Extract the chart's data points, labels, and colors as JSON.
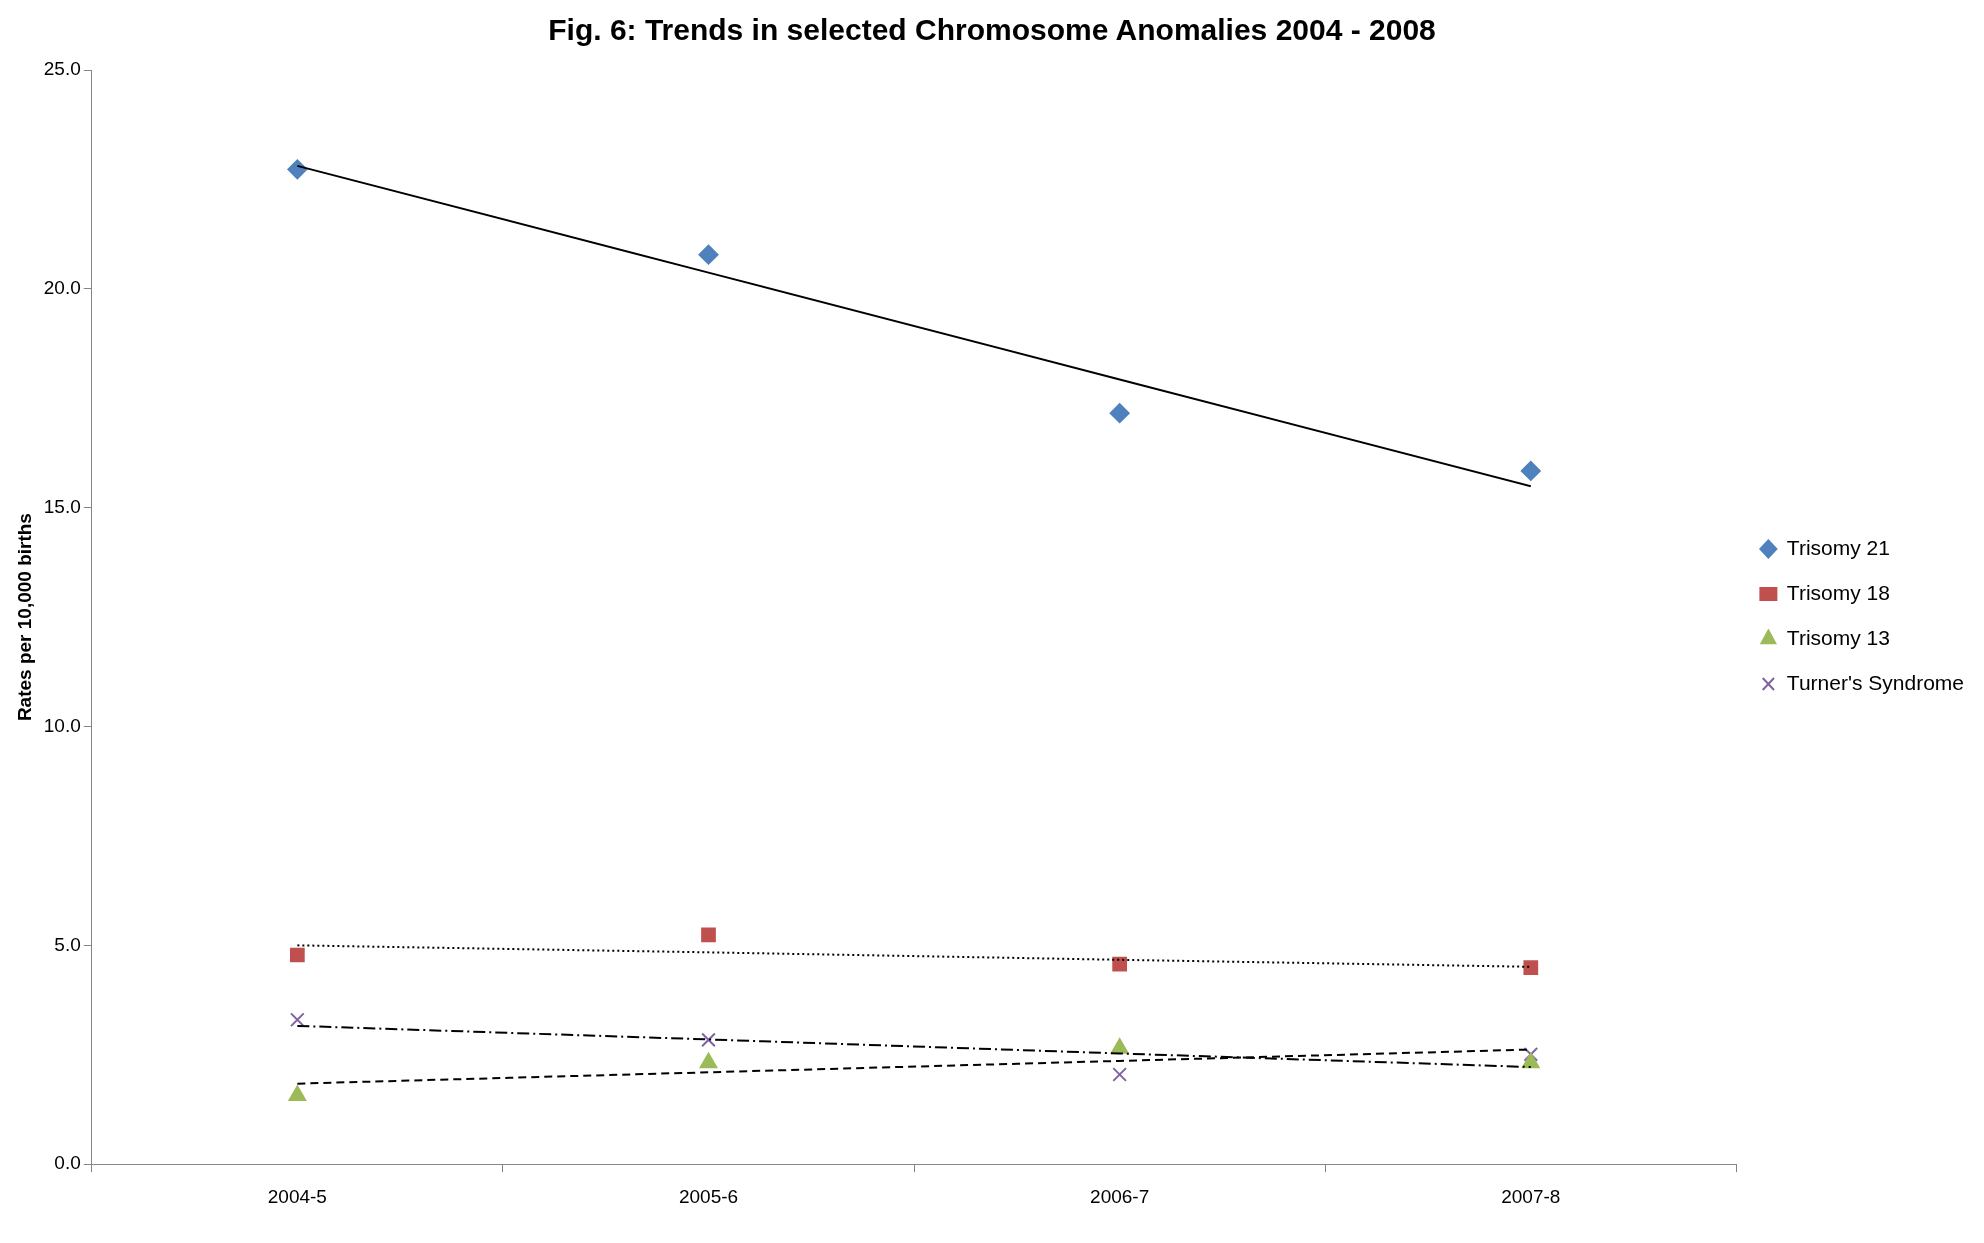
{
  "chart_data": {
    "type": "scatter",
    "title": "Fig. 6: Trends in selected Chromosome Anomalies 2004 - 2008",
    "ylabel": "Rates per 10,000 births",
    "categories": [
      "2004-5",
      "2005-6",
      "2006-7",
      "2007-8"
    ],
    "series": [
      {
        "name": "Trisomy 21",
        "color": "#4f81bd",
        "marker": "diamond",
        "values": [
          22.73,
          20.78,
          17.16,
          15.84
        ]
      },
      {
        "name": "Trisomy 18",
        "color": "#c0504d",
        "marker": "square",
        "values": [
          4.78,
          5.24,
          4.57,
          4.49
        ]
      },
      {
        "name": "Trisomy 13",
        "color": "#9bbb59",
        "marker": "triangle",
        "values": [
          1.57,
          2.32,
          2.65,
          2.32
        ]
      },
      {
        "name": "Turner's Syndrome",
        "color": "#8064a2",
        "marker": "cross",
        "values": [
          3.3,
          2.84,
          2.05,
          2.51
        ]
      },
      {
        "type": "line",
        "color": "#000000",
        "marker": "none",
        "line_style": "solid",
        "values": [
          22.81,
          20.37,
          17.93,
          15.49
        ]
      },
      {
        "type": "line",
        "color": "#000000",
        "marker": "none",
        "line_style": "dotted",
        "values": [
          5.0,
          4.84,
          4.67,
          4.51
        ]
      },
      {
        "type": "line",
        "color": "#000000",
        "marker": "none",
        "line_style": "dashed",
        "values": [
          1.84,
          2.1,
          2.36,
          2.62
        ]
      },
      {
        "type": "line",
        "color": "#000000",
        "marker": "none",
        "line_style": "dashdot",
        "values": [
          3.16,
          2.85,
          2.53,
          2.22
        ]
      }
    ],
    "ylim": [
      0,
      25
    ],
    "yticks": [
      {
        "value": 0,
        "label": "0.0"
      },
      {
        "value": 5,
        "label": "5.0"
      },
      {
        "value": 10,
        "label": "10.0"
      },
      {
        "value": 15,
        "label": "15.0"
      },
      {
        "value": 20,
        "label": "20.0"
      },
      {
        "value": 25,
        "label": "25.0"
      }
    ],
    "grid": false,
    "legend": "right"
  }
}
